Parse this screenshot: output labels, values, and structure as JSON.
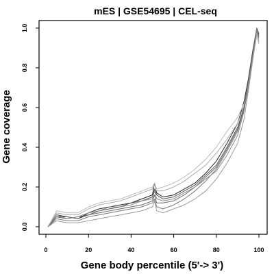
{
  "chart_data": {
    "type": "line",
    "title": "mES | GSE54695 | CEL-seq",
    "xlabel": "Gene body percentile (5'-> 3')",
    "ylabel": "Gene coverage",
    "xlim": [
      0,
      100
    ],
    "ylim": [
      0,
      1
    ],
    "x_ticks": [
      0,
      20,
      40,
      60,
      80,
      100
    ],
    "x_tick_labels": [
      "0",
      "20",
      "40",
      "60",
      "80",
      "100"
    ],
    "y_ticks": [
      0,
      0.2,
      0.4,
      0.6,
      0.8,
      1
    ],
    "y_tick_labels": [
      "0.0",
      "0.2",
      "0.4",
      "0.6",
      "0.8",
      "1.0"
    ],
    "grid": false,
    "legend": "none",
    "x": [
      1,
      5,
      10,
      15,
      20,
      25,
      30,
      35,
      40,
      45,
      50,
      51,
      52,
      55,
      60,
      65,
      70,
      75,
      80,
      85,
      90,
      93,
      95,
      97,
      99,
      100
    ],
    "series": [
      {
        "color": "#222222",
        "values": [
          0.0,
          0.06,
          0.05,
          0.04,
          0.07,
          0.09,
          0.1,
          0.11,
          0.12,
          0.14,
          0.16,
          0.22,
          0.17,
          0.15,
          0.16,
          0.19,
          0.22,
          0.27,
          0.33,
          0.42,
          0.52,
          0.63,
          0.74,
          0.88,
          1.0,
          0.97
        ]
      },
      {
        "color": "#555555",
        "values": [
          0.0,
          0.05,
          0.04,
          0.05,
          0.06,
          0.08,
          0.09,
          0.1,
          0.12,
          0.13,
          0.15,
          0.19,
          0.16,
          0.14,
          0.15,
          0.18,
          0.21,
          0.26,
          0.31,
          0.4,
          0.5,
          0.6,
          0.72,
          0.86,
          0.98,
          0.95
        ]
      },
      {
        "color": "#777777",
        "values": [
          0.0,
          0.04,
          0.03,
          0.03,
          0.05,
          0.06,
          0.07,
          0.08,
          0.09,
          0.1,
          0.12,
          0.14,
          0.1,
          0.09,
          0.11,
          0.14,
          0.18,
          0.23,
          0.29,
          0.38,
          0.48,
          0.59,
          0.71,
          0.85,
          0.99,
          0.96
        ]
      },
      {
        "color": "#999999",
        "values": [
          0.0,
          0.03,
          0.02,
          0.02,
          0.03,
          0.04,
          0.05,
          0.06,
          0.07,
          0.08,
          0.1,
          0.13,
          0.08,
          0.07,
          0.09,
          0.11,
          0.14,
          0.18,
          0.24,
          0.32,
          0.42,
          0.54,
          0.68,
          0.83,
          0.97,
          0.94
        ]
      },
      {
        "color": "#aaaaaa",
        "values": [
          0.0,
          0.07,
          0.06,
          0.06,
          0.09,
          0.11,
          0.12,
          0.13,
          0.15,
          0.17,
          0.19,
          0.21,
          0.18,
          0.18,
          0.2,
          0.23,
          0.27,
          0.31,
          0.37,
          0.44,
          0.52,
          0.61,
          0.72,
          0.86,
          0.98,
          0.93
        ]
      },
      {
        "color": "#bbbbbb",
        "values": [
          0.0,
          0.08,
          0.07,
          0.07,
          0.1,
          0.12,
          0.13,
          0.14,
          0.16,
          0.18,
          0.2,
          0.22,
          0.19,
          0.2,
          0.22,
          0.25,
          0.29,
          0.34,
          0.4,
          0.48,
          0.55,
          0.62,
          0.71,
          0.84,
          0.96,
          0.92
        ]
      },
      {
        "color": "#666666",
        "values": [
          0.0,
          0.05,
          0.05,
          0.04,
          0.06,
          0.07,
          0.08,
          0.09,
          0.1,
          0.11,
          0.13,
          0.16,
          0.12,
          0.12,
          0.13,
          0.16,
          0.2,
          0.25,
          0.3,
          0.39,
          0.49,
          0.6,
          0.73,
          0.87,
          1.0,
          0.96
        ]
      },
      {
        "color": "#888888",
        "values": [
          0.0,
          0.06,
          0.04,
          0.05,
          0.07,
          0.08,
          0.1,
          0.1,
          0.11,
          0.13,
          0.14,
          0.18,
          0.14,
          0.13,
          0.14,
          0.17,
          0.2,
          0.24,
          0.28,
          0.36,
          0.46,
          0.58,
          0.7,
          0.85,
          0.99,
          0.95
        ]
      }
    ]
  }
}
